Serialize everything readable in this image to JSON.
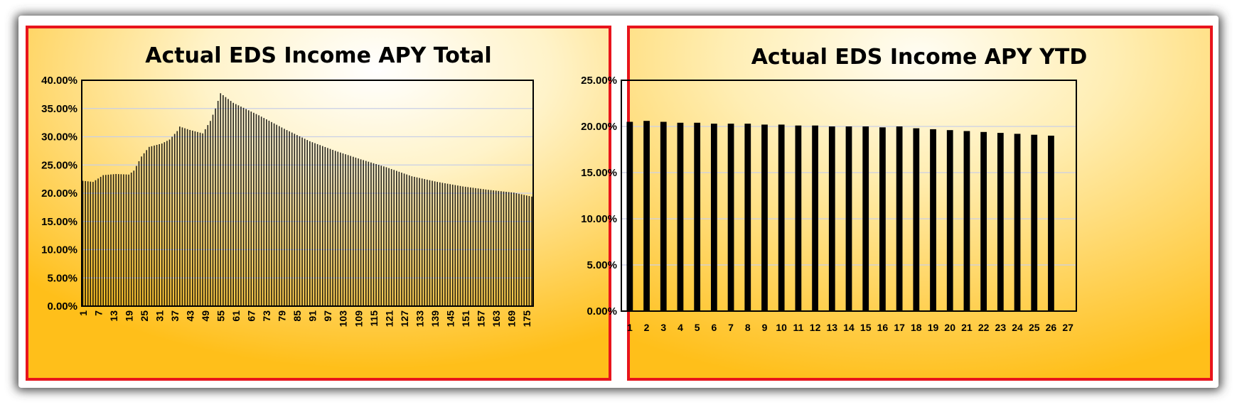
{
  "colors": {
    "panel_border": "#e8141c",
    "panel_gold": "#ffbf1a",
    "panel_light": "#fffbe8",
    "bar_fill": "#000000",
    "gridline": "#c9cfe6",
    "shadow": "#555555"
  },
  "chart_data": [
    {
      "type": "bar",
      "title": "Actual EDS Income APY Total",
      "xlabel": "",
      "ylabel": "",
      "ylim": [
        0,
        40
      ],
      "yticks": [
        "0.00%",
        "5.00%",
        "10.00%",
        "15.00%",
        "20.00%",
        "25.00%",
        "30.00%",
        "35.00%",
        "40.00%"
      ],
      "x_tick_labels": [
        "1",
        "7",
        "13",
        "19",
        "25",
        "31",
        "37",
        "43",
        "49",
        "55",
        "61",
        "67",
        "73",
        "79",
        "85",
        "91",
        "97",
        "103",
        "109",
        "115",
        "121",
        "127",
        "133",
        "139",
        "145",
        "151",
        "157",
        "163",
        "169",
        "175"
      ],
      "categories_count": 177,
      "gridlines": true,
      "value_unit": "%",
      "values_anchor_points": [
        [
          1,
          22.2
        ],
        [
          5,
          22.0
        ],
        [
          9,
          23.2
        ],
        [
          14,
          23.4
        ],
        [
          19,
          23.3
        ],
        [
          21,
          24.0
        ],
        [
          24,
          26.5
        ],
        [
          27,
          28.2
        ],
        [
          32,
          28.8
        ],
        [
          35,
          29.5
        ],
        [
          38,
          31.0
        ],
        [
          39,
          31.8
        ],
        [
          43,
          31.2
        ],
        [
          48,
          30.6
        ],
        [
          51,
          32.8
        ],
        [
          53,
          35.0
        ],
        [
          55,
          37.7
        ],
        [
          60,
          36.0
        ],
        [
          70,
          33.8
        ],
        [
          80,
          31.4
        ],
        [
          90,
          29.2
        ],
        [
          100,
          27.5
        ],
        [
          110,
          26.0
        ],
        [
          120,
          24.6
        ],
        [
          130,
          23.0
        ],
        [
          140,
          22.0
        ],
        [
          150,
          21.2
        ],
        [
          160,
          20.6
        ],
        [
          170,
          20.1
        ],
        [
          177,
          19.4
        ]
      ]
    },
    {
      "type": "bar",
      "title": "Actual EDS Income APY YTD",
      "xlabel": "",
      "ylabel": "",
      "ylim": [
        0,
        25
      ],
      "yticks": [
        "0.00%",
        "5.00%",
        "10.00%",
        "15.00%",
        "20.00%",
        "25.00%"
      ],
      "categories": [
        "1",
        "2",
        "3",
        "4",
        "5",
        "6",
        "7",
        "8",
        "9",
        "10",
        "11",
        "12",
        "13",
        "14",
        "15",
        "16",
        "17",
        "18",
        "19",
        "20",
        "21",
        "22",
        "23",
        "24",
        "25",
        "26",
        "27"
      ],
      "values": [
        20.5,
        20.6,
        20.5,
        20.4,
        20.4,
        20.3,
        20.3,
        20.3,
        20.2,
        20.2,
        20.1,
        20.1,
        20.0,
        20.0,
        20.0,
        19.9,
        20.0,
        19.8,
        19.7,
        19.6,
        19.5,
        19.4,
        19.3,
        19.2,
        19.1,
        19.0,
        null
      ],
      "gridlines": true,
      "value_unit": "%"
    }
  ]
}
